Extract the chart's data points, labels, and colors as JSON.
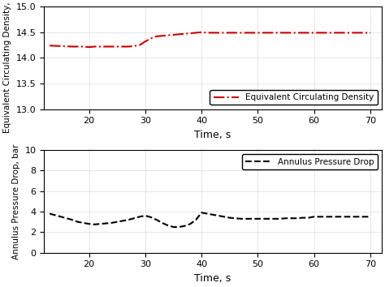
{
  "ecd_xlabel": "Time, s",
  "ecd_ylabel": "Equivalent Circulating Density, ppg",
  "apd_xlabel": "Time, s",
  "apd_ylabel": "Annulus Pressure Drop, bar",
  "xlim": [
    12,
    72
  ],
  "xticks": [
    20,
    30,
    40,
    50,
    60,
    70
  ],
  "ecd_ylim": [
    13,
    15
  ],
  "ecd_yticks": [
    13,
    13.5,
    14,
    14.5,
    15
  ],
  "apd_ylim": [
    0,
    10
  ],
  "apd_yticks": [
    0,
    2,
    4,
    6,
    8,
    10
  ],
  "ecd_color": "#cc0000",
  "apd_color": "#000000",
  "ecd_label": "Equivalent Circulating Density",
  "apd_label": "Annulus Pressure Drop",
  "plot_bg_color": "#ffffff",
  "fig_bg_color": "#ffffff",
  "ecd_x": [
    13,
    15,
    17,
    18,
    19,
    20,
    21,
    22,
    23,
    24,
    25,
    26,
    27,
    28,
    29,
    30,
    31,
    32,
    33,
    34,
    35,
    36,
    37,
    38,
    39,
    40,
    41,
    42,
    43,
    44,
    45,
    46,
    47,
    48,
    49,
    50,
    51,
    52,
    53,
    54,
    55,
    56,
    57,
    58,
    59,
    60,
    61,
    62,
    63,
    64,
    65,
    66,
    67,
    68,
    69,
    70
  ],
  "ecd_y": [
    14.24,
    14.23,
    14.22,
    14.22,
    14.22,
    14.21,
    14.22,
    14.22,
    14.22,
    14.22,
    14.22,
    14.22,
    14.22,
    14.23,
    14.25,
    14.32,
    14.38,
    14.42,
    14.43,
    14.44,
    14.45,
    14.46,
    14.47,
    14.48,
    14.49,
    14.5,
    14.49,
    14.49,
    14.49,
    14.49,
    14.49,
    14.49,
    14.49,
    14.49,
    14.49,
    14.49,
    14.49,
    14.49,
    14.49,
    14.49,
    14.49,
    14.49,
    14.49,
    14.49,
    14.49,
    14.49,
    14.49,
    14.49,
    14.49,
    14.49,
    14.49,
    14.49,
    14.49,
    14.49,
    14.49,
    14.49
  ],
  "apd_x": [
    13,
    15,
    17,
    18,
    19,
    20,
    21,
    22,
    23,
    24,
    25,
    26,
    27,
    28,
    29,
    30,
    31,
    32,
    33,
    34,
    35,
    36,
    37,
    38,
    39,
    40,
    41,
    42,
    43,
    44,
    45,
    46,
    47,
    48,
    49,
    50,
    51,
    52,
    53,
    54,
    55,
    56,
    57,
    58,
    59,
    60,
    61,
    62,
    63,
    64,
    65,
    66,
    67,
    68,
    69,
    70
  ],
  "apd_y": [
    3.8,
    3.5,
    3.2,
    3.0,
    2.9,
    2.8,
    2.75,
    2.8,
    2.85,
    2.9,
    3.0,
    3.1,
    3.2,
    3.35,
    3.5,
    3.6,
    3.45,
    3.2,
    2.9,
    2.65,
    2.5,
    2.5,
    2.6,
    2.8,
    3.2,
    3.9,
    3.8,
    3.7,
    3.6,
    3.5,
    3.4,
    3.35,
    3.3,
    3.3,
    3.3,
    3.3,
    3.3,
    3.3,
    3.3,
    3.3,
    3.35,
    3.35,
    3.35,
    3.4,
    3.4,
    3.5,
    3.5,
    3.5,
    3.5,
    3.5,
    3.5,
    3.5,
    3.5,
    3.5,
    3.5,
    3.5
  ]
}
